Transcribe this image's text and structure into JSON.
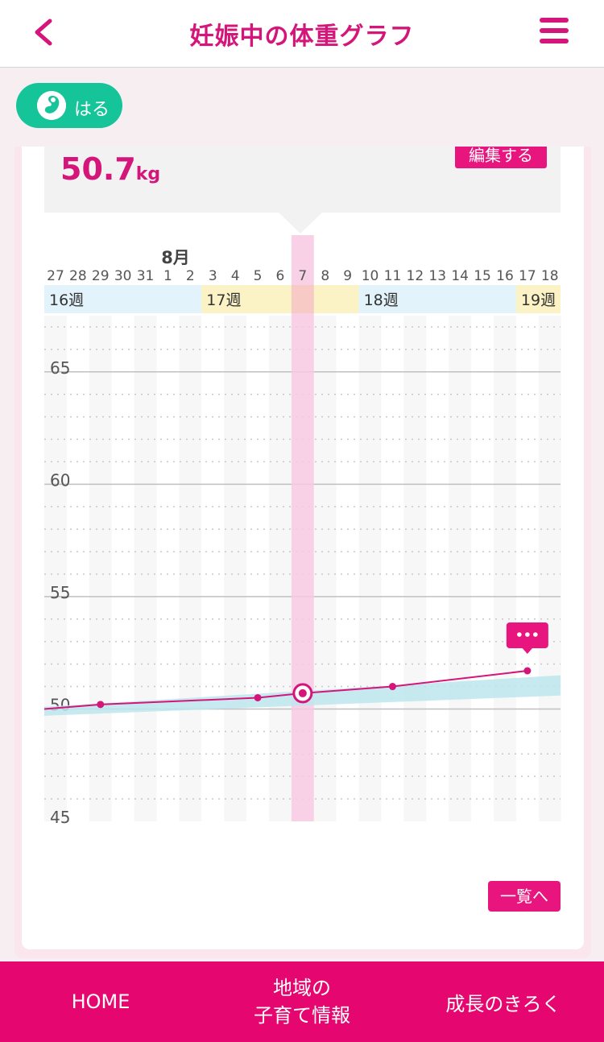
{
  "header": {
    "title": "妊娠中の体重グラフ",
    "back_icon": "chevron-left-icon",
    "menu_icon": "hamburger-menu-icon"
  },
  "profile": {
    "name": "はる",
    "icon": "fetus-icon"
  },
  "summary": {
    "weight_value": "50.7",
    "weight_unit": "kg",
    "edit_label": "編集する"
  },
  "colors": {
    "accent": "#e5076f",
    "title": "#d4157a",
    "profile_green": "#16c49a",
    "range_band": "#bde6ee"
  },
  "chart_data": {
    "type": "line",
    "month_label": "8月",
    "day_labels": [
      "27",
      "28",
      "29",
      "30",
      "31",
      "1",
      "2",
      "3",
      "4",
      "5",
      "6",
      "7",
      "8",
      "9",
      "10",
      "11",
      "12",
      "13",
      "14",
      "15",
      "16",
      "17",
      "18"
    ],
    "weeks": [
      {
        "label": "16週",
        "start": 0,
        "end": 6,
        "color": "#e3f3fb"
      },
      {
        "label": "17週",
        "start": 7,
        "end": 13,
        "color": "#fbf3c6"
      },
      {
        "label": "18週",
        "start": 14,
        "end": 20,
        "color": "#e3f3fb"
      },
      {
        "label": "19週",
        "start": 21,
        "end": 22,
        "color": "#fbf3c6"
      }
    ],
    "selected_day_index": 11,
    "y_ticks": [
      "65",
      "60",
      "55",
      "50",
      "45"
    ],
    "ylim": [
      45,
      67.5
    ],
    "series": [
      {
        "x": [
          2,
          9,
          11,
          15,
          21
        ],
        "values": [
          50.2,
          50.5,
          50.7,
          51.0,
          51.7
        ]
      }
    ],
    "recommended_band": {
      "x": [
        0,
        22
      ],
      "lower": [
        49.7,
        50.6
      ],
      "upper": [
        50.1,
        51.5
      ]
    },
    "comment_day_index": 21,
    "comment_icon": "speech-bubble-dots-icon"
  },
  "list_button_label": "一覧へ",
  "bottom_nav": {
    "home": "HOME",
    "local_line1": "地域の",
    "local_line2": "子育て情報",
    "growth": "成長のきろく"
  }
}
